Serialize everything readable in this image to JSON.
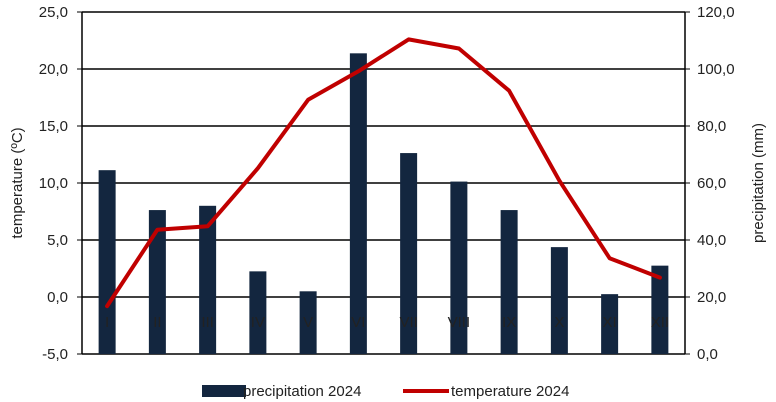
{
  "chart_data": {
    "type": "bar+line",
    "categories": [
      "I",
      "II",
      "III",
      "IV",
      "V",
      "VI",
      "VII",
      "VIII",
      "IX",
      "X",
      "XI",
      "XII"
    ],
    "series": [
      {
        "name": "precipitation 2024",
        "type": "bar",
        "axis": "right",
        "color": "#13263f",
        "values": [
          64.5,
          50.5,
          52,
          29,
          22,
          105.5,
          70.5,
          60.5,
          50.5,
          37.5,
          21,
          31
        ]
      },
      {
        "name": "temperature 2024",
        "type": "line",
        "axis": "left",
        "color": "#c00000",
        "values": [
          -0.8,
          5.9,
          6.2,
          11.3,
          17.3,
          19.8,
          22.6,
          21.8,
          18.1,
          10.2,
          3.4,
          1.7
        ]
      }
    ],
    "y_left": {
      "label": "temperature (ºC)",
      "min": -5,
      "max": 25,
      "ticks": [
        "-5,0",
        "0,0",
        "5,0",
        "10,0",
        "15,0",
        "20,0",
        "25,0"
      ]
    },
    "y_right": {
      "label": "precipitation (mm)",
      "min": 0,
      "max": 120,
      "ticks": [
        "0,0",
        "20,0",
        "40,0",
        "60,0",
        "80,0",
        "100,0",
        "120,0"
      ]
    },
    "grid": true,
    "legend_position": "bottom"
  }
}
